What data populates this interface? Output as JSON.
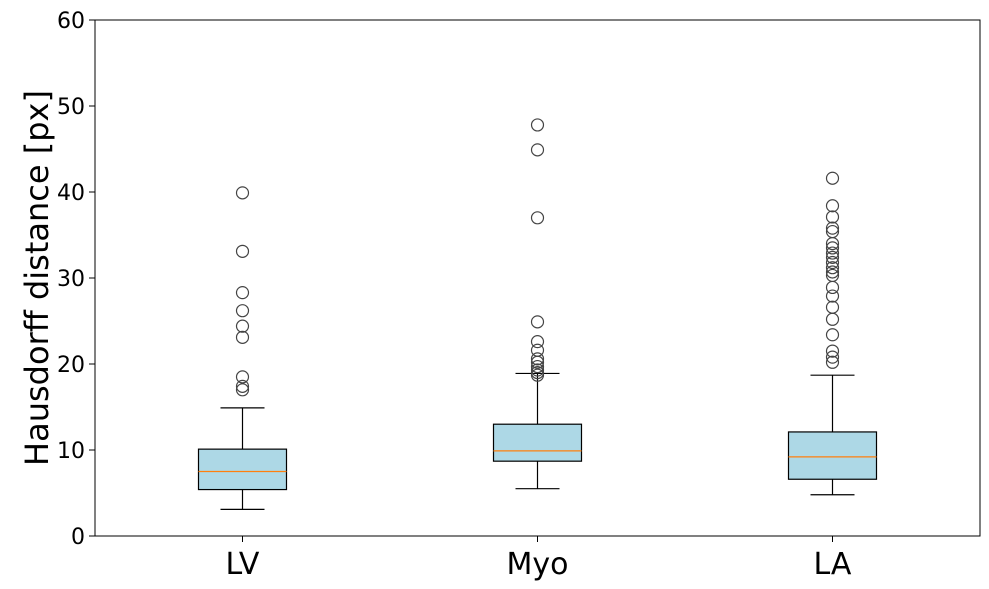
{
  "chart_data": {
    "type": "box",
    "title": "",
    "xlabel": "",
    "ylabel": "Hausdorff distance [px]",
    "ylim": [
      0,
      60
    ],
    "yticks": [
      0,
      10,
      20,
      30,
      40,
      50,
      60
    ],
    "grid": false,
    "categories": [
      "LV",
      "Myo",
      "LA"
    ],
    "boxes": [
      {
        "name": "LV",
        "whisker_low": 3.1,
        "q1": 5.4,
        "median": 7.5,
        "q3": 10.1,
        "whisker_high": 14.9,
        "outliers": [
          17.0,
          17.4,
          18.5,
          23.1,
          24.4,
          26.2,
          28.3,
          33.1,
          39.9
        ]
      },
      {
        "name": "Myo",
        "whisker_low": 5.5,
        "q1": 8.7,
        "median": 9.9,
        "q3": 13.0,
        "whisker_high": 18.9,
        "outliers": [
          18.7,
          19.0,
          19.3,
          19.7,
          20.2,
          20.6,
          21.6,
          22.6,
          24.9,
          37.0,
          44.9,
          47.8
        ]
      },
      {
        "name": "LA",
        "whisker_low": 4.8,
        "q1": 6.6,
        "median": 9.2,
        "q3": 12.1,
        "whisker_high": 18.7,
        "outliers": [
          20.2,
          20.8,
          21.5,
          23.4,
          25.2,
          26.6,
          27.9,
          28.9,
          30.3,
          30.7,
          31.2,
          31.8,
          32.4,
          32.9,
          33.5,
          34.0,
          35.4,
          35.8,
          37.1,
          38.4,
          41.6
        ]
      }
    ],
    "colors": {
      "box_fill": "#add8e6",
      "median": "#ff7f0e",
      "line": "#000000",
      "outlier_edge": "#444444"
    }
  }
}
